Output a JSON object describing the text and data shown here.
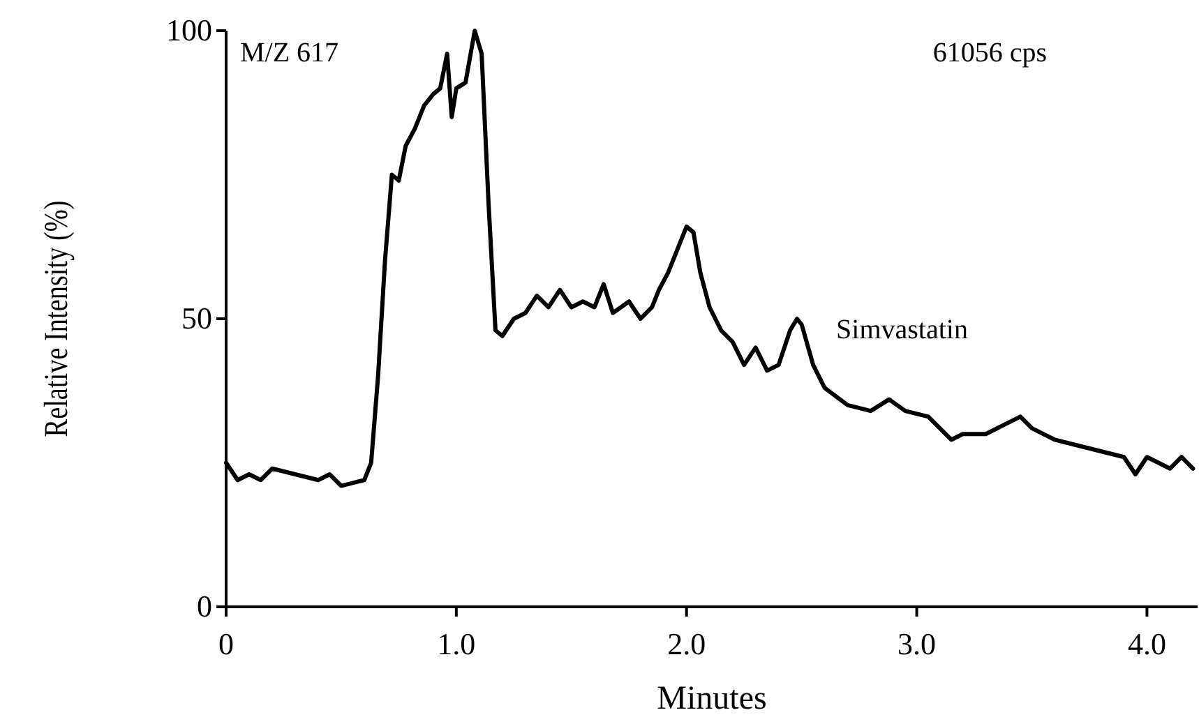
{
  "chart_data": {
    "type": "line",
    "xlabel": "Minutes",
    "ylabel": "Relative Intensity (%)",
    "annotations": [
      "M/Z 617",
      "61056 cps",
      {
        "text": "Simvastatin",
        "x": 2.48,
        "y": 50
      }
    ],
    "xlim": [
      0,
      4.22
    ],
    "xticks": [
      {
        "value": 0,
        "label": "0"
      },
      {
        "value": 1,
        "label": "1.0"
      },
      {
        "value": 2,
        "label": "2.0"
      },
      {
        "value": 3,
        "label": "3.0"
      },
      {
        "value": 4,
        "label": "4.0"
      }
    ],
    "ylim": [
      0,
      100
    ],
    "yticks": [
      0,
      50,
      100
    ],
    "marker": "none",
    "line_style": "solid",
    "series": [
      {
        "color": "#000000",
        "x": [
          0,
          0.05,
          0.1,
          0.15,
          0.2,
          0.3,
          0.4,
          0.45,
          0.5,
          0.6,
          0.63,
          0.66,
          0.69,
          0.72,
          0.75,
          0.78,
          0.82,
          0.86,
          0.9,
          0.93,
          0.96,
          0.98,
          1.0,
          1.04,
          1.08,
          1.11,
          1.14,
          1.17,
          1.2,
          1.25,
          1.3,
          1.35,
          1.4,
          1.45,
          1.5,
          1.55,
          1.6,
          1.64,
          1.68,
          1.75,
          1.8,
          1.85,
          1.88,
          1.92,
          1.96,
          2.0,
          2.03,
          2.06,
          2.1,
          2.15,
          2.2,
          2.25,
          2.3,
          2.35,
          2.4,
          2.45,
          2.48,
          2.5,
          2.55,
          2.6,
          2.7,
          2.8,
          2.88,
          2.95,
          3.05,
          3.15,
          3.2,
          3.3,
          3.4,
          3.45,
          3.5,
          3.6,
          3.7,
          3.8,
          3.9,
          3.95,
          4.0,
          4.05,
          4.1,
          4.15,
          4.2
        ],
        "values": [
          25,
          22,
          23,
          22,
          24,
          23,
          22,
          23,
          21,
          22,
          25,
          40,
          60,
          75,
          74,
          80,
          83,
          87,
          89,
          90,
          96,
          85,
          90,
          91,
          100,
          96,
          70,
          48,
          47,
          50,
          51,
          54,
          52,
          55,
          52,
          53,
          52,
          56,
          51,
          53,
          50,
          52,
          55,
          58,
          62,
          66,
          65,
          58,
          52,
          48,
          46,
          42,
          45,
          41,
          42,
          48,
          50,
          49,
          42,
          38,
          35,
          34,
          36,
          34,
          33,
          29,
          30,
          30,
          32,
          33,
          31,
          29,
          28,
          27,
          26,
          23,
          26,
          25,
          24,
          26,
          24
        ]
      }
    ]
  }
}
